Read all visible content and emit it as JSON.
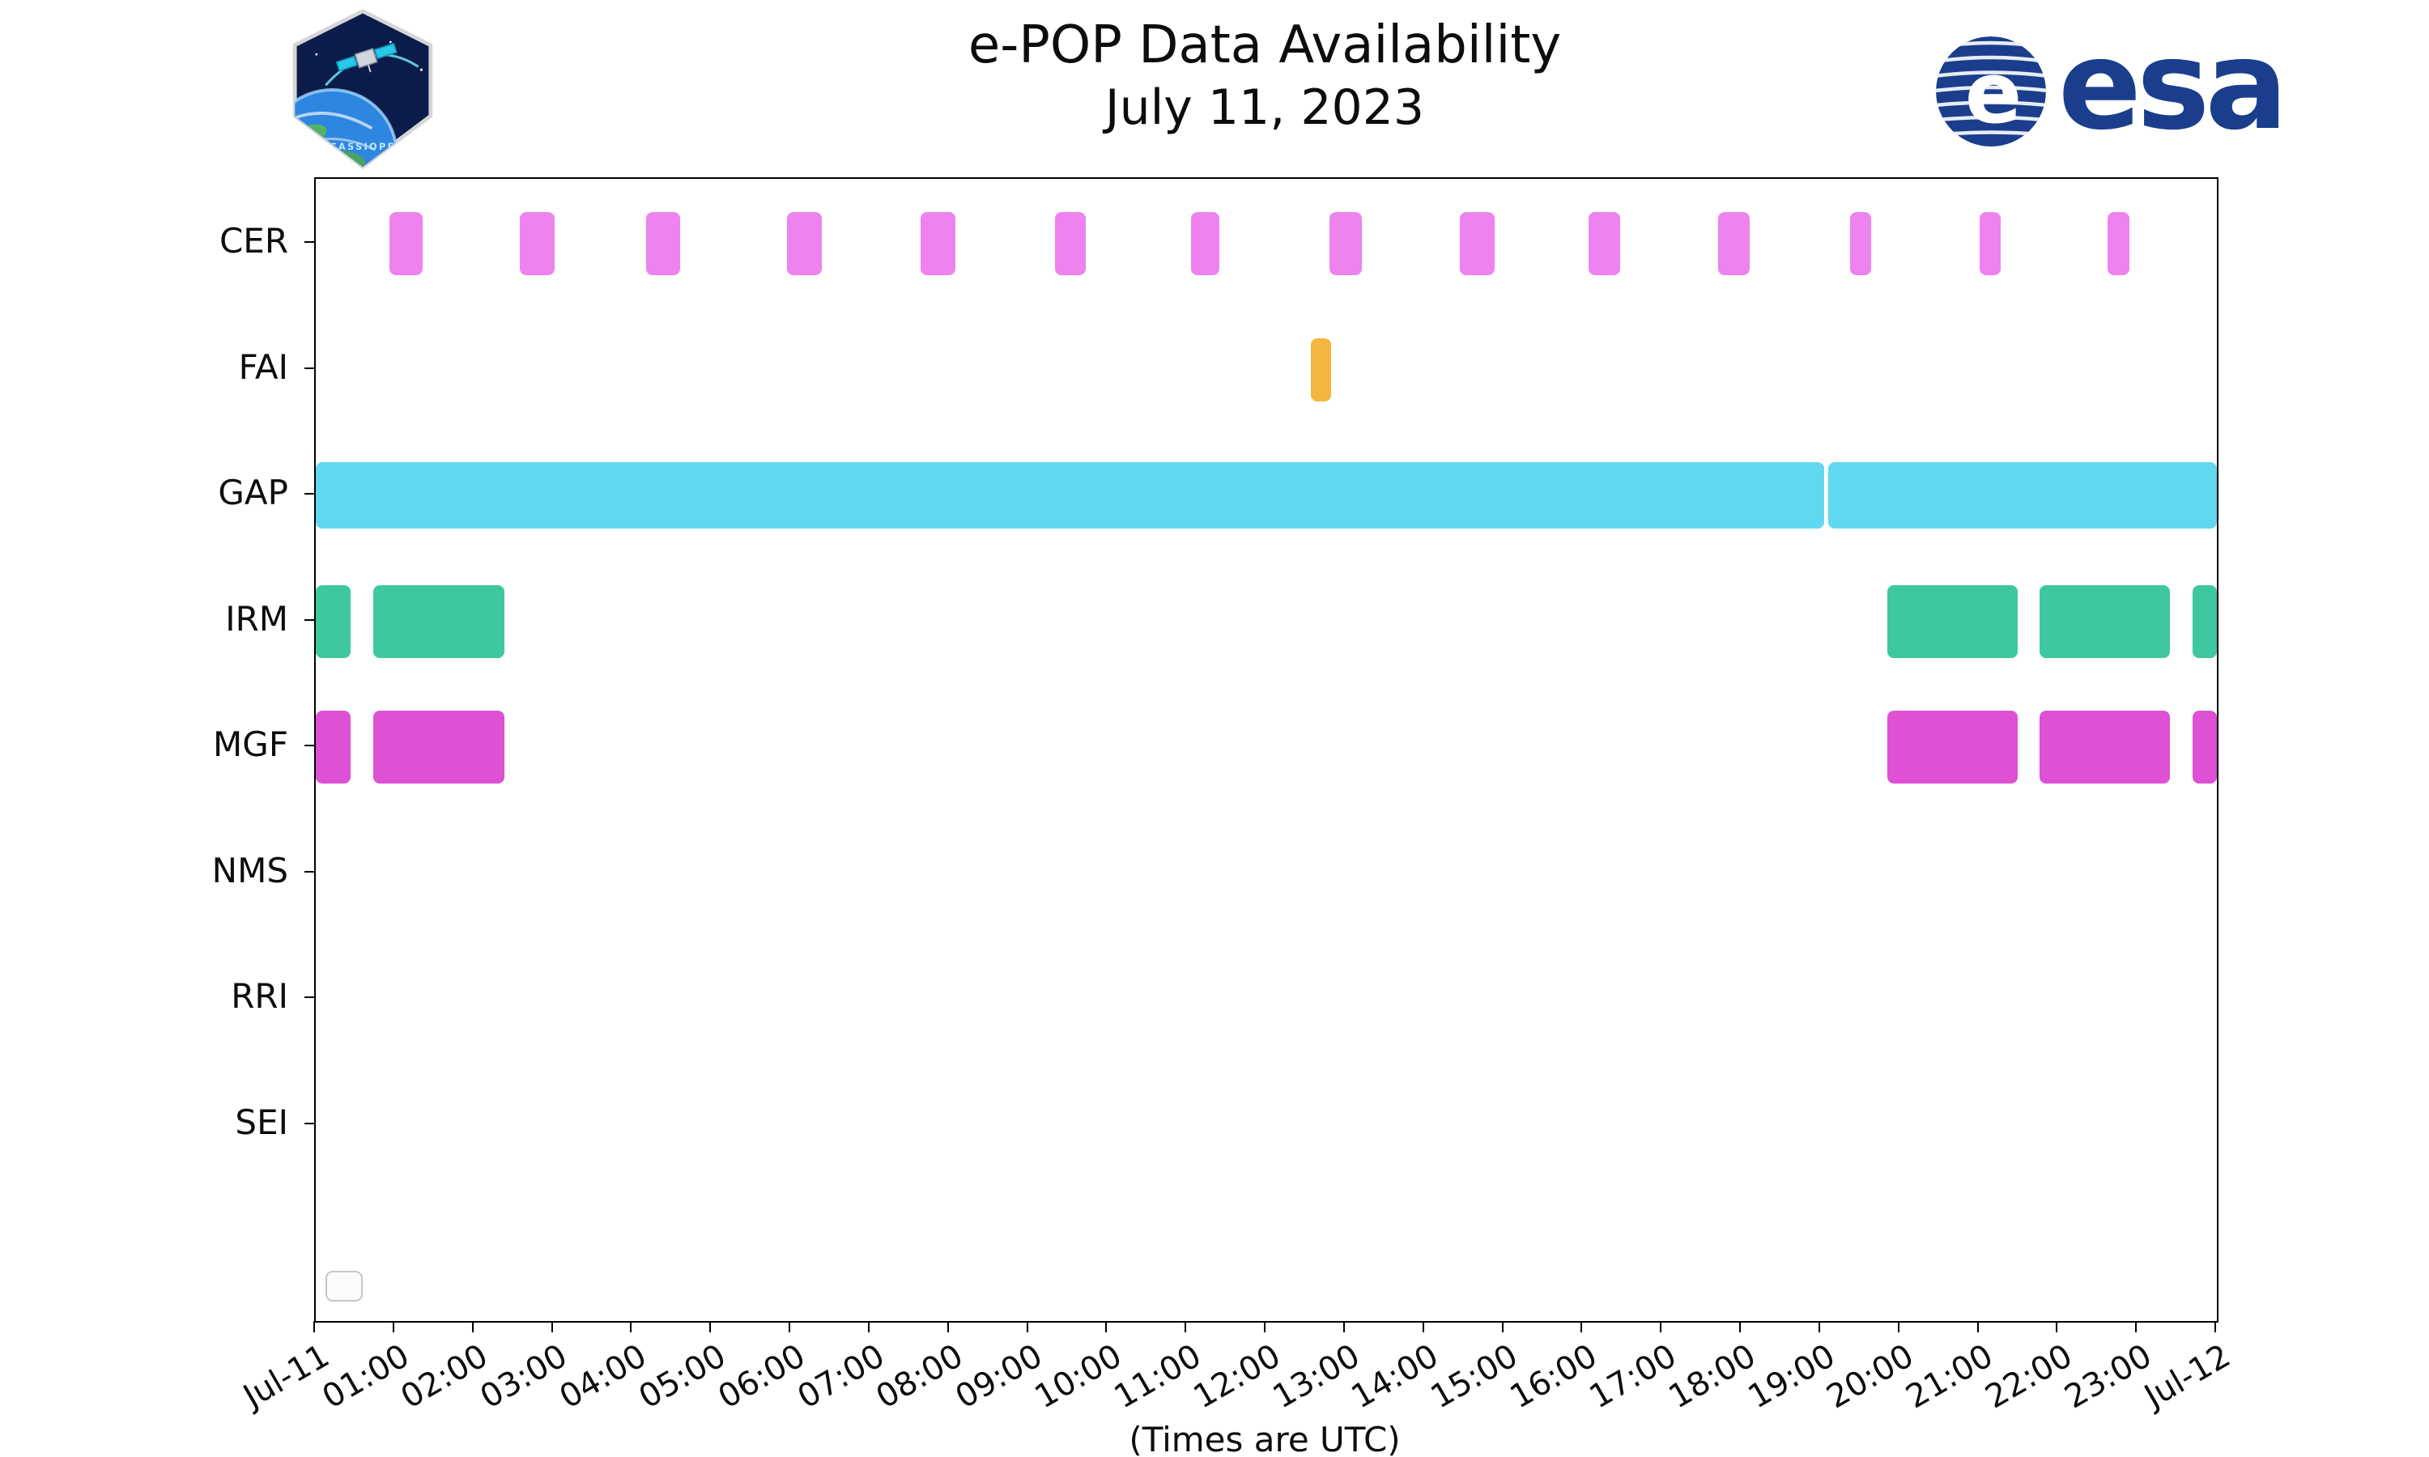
{
  "title": {
    "line1": "e-POP Data Availability",
    "line2": "July 11, 2023"
  },
  "logos": {
    "esa_text": "esa",
    "patch_text": "CASSIOPE"
  },
  "footer": {
    "xlabel": "(Times are UTC)"
  },
  "colors": {
    "cer": "#ee82ee",
    "fai": "#f3b63f",
    "gap": "#62d7f0",
    "irm": "#3fc89f",
    "mgf": "#de50d4",
    "axis": "#000000",
    "esa_blue": "#1b3e8c"
  },
  "chart_data": {
    "type": "bar",
    "subtype": "availability-timeline",
    "title": "e-POP Data Availability July 11, 2023",
    "xlabel": "(Times are UTC)",
    "x_axis": {
      "range_hours": [
        0,
        24
      ],
      "start_label": "Jul-11",
      "end_label": "Jul-12",
      "hour_labels": [
        "01:00",
        "02:00",
        "03:00",
        "04:00",
        "05:00",
        "06:00",
        "07:00",
        "08:00",
        "09:00",
        "10:00",
        "11:00",
        "12:00",
        "13:00",
        "14:00",
        "15:00",
        "16:00",
        "17:00",
        "18:00",
        "19:00",
        "20:00",
        "21:00",
        "22:00",
        "23:00"
      ]
    },
    "rows": [
      {
        "label": "CER",
        "color": "#ee82ee",
        "segments": [
          [
            0.93,
            1.35
          ],
          [
            2.58,
            3.02
          ],
          [
            4.17,
            4.6
          ],
          [
            5.95,
            6.39
          ],
          [
            7.64,
            8.08
          ],
          [
            9.33,
            9.72
          ],
          [
            11.05,
            11.41
          ],
          [
            12.8,
            13.21
          ],
          [
            14.44,
            14.88
          ],
          [
            16.07,
            16.47
          ],
          [
            17.7,
            18.1
          ],
          [
            19.37,
            19.64
          ],
          [
            21.0,
            21.27
          ],
          [
            22.62,
            22.9
          ]
        ]
      },
      {
        "label": "FAI",
        "color": "#f3b63f",
        "segments": [
          [
            12.56,
            12.82
          ]
        ]
      },
      {
        "label": "GAP",
        "color": "#62d7f0",
        "segments": [
          [
            0,
            19.04
          ],
          [
            19.09,
            24
          ]
        ]
      },
      {
        "label": "IRM",
        "color": "#3fc89f",
        "segments": [
          [
            0,
            0.44
          ],
          [
            0.73,
            2.38
          ],
          [
            19.84,
            21.49
          ],
          [
            21.76,
            23.41
          ],
          [
            23.69,
            24
          ]
        ]
      },
      {
        "label": "MGF",
        "color": "#de50d4",
        "segments": [
          [
            0,
            0.44
          ],
          [
            0.73,
            2.38
          ],
          [
            19.84,
            21.49
          ],
          [
            21.76,
            23.41
          ],
          [
            23.69,
            24
          ]
        ]
      },
      {
        "label": "NMS",
        "color": "#999999",
        "segments": []
      },
      {
        "label": "RRI",
        "color": "#999999",
        "segments": []
      },
      {
        "label": "SEI",
        "color": "#999999",
        "segments": []
      }
    ]
  }
}
